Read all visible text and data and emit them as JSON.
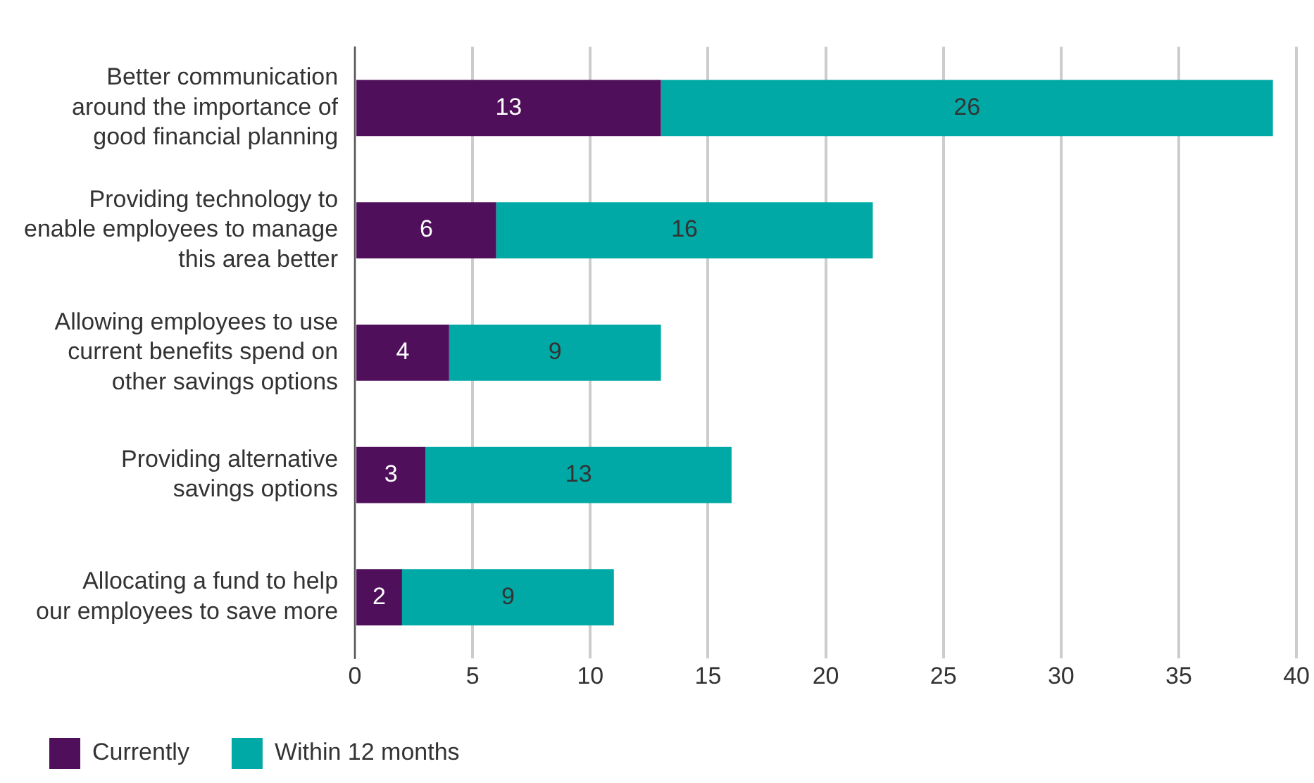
{
  "chart_data": {
    "type": "bar",
    "orientation": "horizontal",
    "stacked": true,
    "categories": [
      "Better communication around the importance of good financial planning",
      "Providing technology to enable employees to manage this area better",
      "Allowing employees to use current benefits spend on other savings options",
      "Providing alternative savings options",
      "Allocating a fund to help our employees to save more"
    ],
    "series": [
      {
        "name": "Currently",
        "color": "#4f0f5a",
        "values": [
          13,
          6,
          4,
          3,
          2
        ]
      },
      {
        "name": "Within 12 months",
        "color": "#00a9a5",
        "values": [
          26,
          16,
          9,
          13,
          9
        ]
      }
    ],
    "xlim": [
      0,
      40
    ],
    "xticks": [
      0,
      5,
      10,
      15,
      20,
      25,
      30,
      35,
      40
    ],
    "grid": "x",
    "legend": "bottom",
    "data_labels": true
  }
}
